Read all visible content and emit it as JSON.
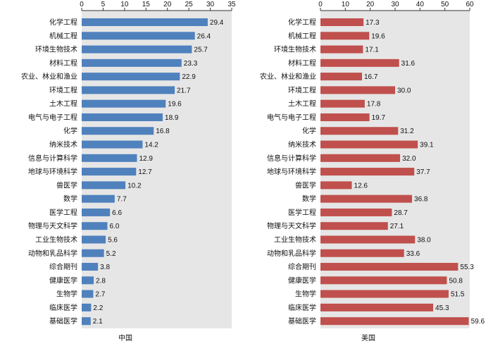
{
  "chart_data": [
    {
      "type": "bar",
      "orientation": "horizontal",
      "title": "中国",
      "xlim": [
        0,
        35
      ],
      "xticks": [
        0,
        5,
        10,
        15,
        20,
        25,
        30,
        35
      ],
      "bar_color": "#4f81bd",
      "categories": [
        "化学工程",
        "机械工程",
        "环境生物技术",
        "材料工程",
        "农业、林业和渔业",
        "环境工程",
        "土木工程",
        "电气与电子工程",
        "化学",
        "纳米技术",
        "信息与计算科学",
        "地球与环境科学",
        "兽医学",
        "数学",
        "医学工程",
        "物理与天文科学",
        "工业生物技术",
        "动物和乳品科学",
        "综合期刊",
        "健康医学",
        "生物学",
        "临床医学",
        "基础医学"
      ],
      "values": [
        29.4,
        26.4,
        25.7,
        23.3,
        22.9,
        21.7,
        19.6,
        18.9,
        16.8,
        14.2,
        12.9,
        12.7,
        10.2,
        7.7,
        6.6,
        6.0,
        5.6,
        5.2,
        3.8,
        2.8,
        2.7,
        2.2,
        2.1
      ],
      "value_labels": [
        "29.4",
        "26.4",
        "25.7",
        "23.3",
        "22.9",
        "21.7",
        "19.6",
        "18.9",
        "16.8",
        "14.2",
        "12.9",
        "12.7",
        "10.2",
        "7.7",
        "6.6",
        "6.0",
        "5.6",
        "5.2",
        "3.8",
        "2.8",
        "2.7",
        "2.2",
        "2.1"
      ]
    },
    {
      "type": "bar",
      "orientation": "horizontal",
      "title": "美国",
      "xlim": [
        0,
        60
      ],
      "xticks": [
        0,
        10,
        20,
        30,
        40,
        50,
        60
      ],
      "bar_color": "#c0504d",
      "categories": [
        "化学工程",
        "机械工程",
        "环境生物技术",
        "材料工程",
        "农业、林业和渔业",
        "环境工程",
        "土木工程",
        "电气与电子工程",
        "化学",
        "纳米技术",
        "信息与计算科学",
        "地球与环境科学",
        "兽医学",
        "数学",
        "医学工程",
        "物理与天文科学",
        "工业生物技术",
        "动物和乳品科学",
        "综合期刊",
        "健康医学",
        "生物学",
        "临床医学",
        "基础医学"
      ],
      "values": [
        17.3,
        19.6,
        17.1,
        31.6,
        16.7,
        30.0,
        17.8,
        19.7,
        31.2,
        39.1,
        32.0,
        37.7,
        12.6,
        36.8,
        28.7,
        27.1,
        38.0,
        33.6,
        55.3,
        50.8,
        51.5,
        45.3,
        59.6
      ],
      "value_labels": [
        "17.3",
        "19.6",
        "17.1",
        "31.6",
        "16.7",
        "30.0",
        "17.8",
        "19.7",
        "31.2",
        "39.1",
        "32.0",
        "37.7",
        "12.6",
        "36.8",
        "28.7",
        "27.1",
        "38.0",
        "33.6",
        "55.3",
        "50.8",
        "51.5",
        "45.3",
        "59.6"
      ]
    }
  ]
}
